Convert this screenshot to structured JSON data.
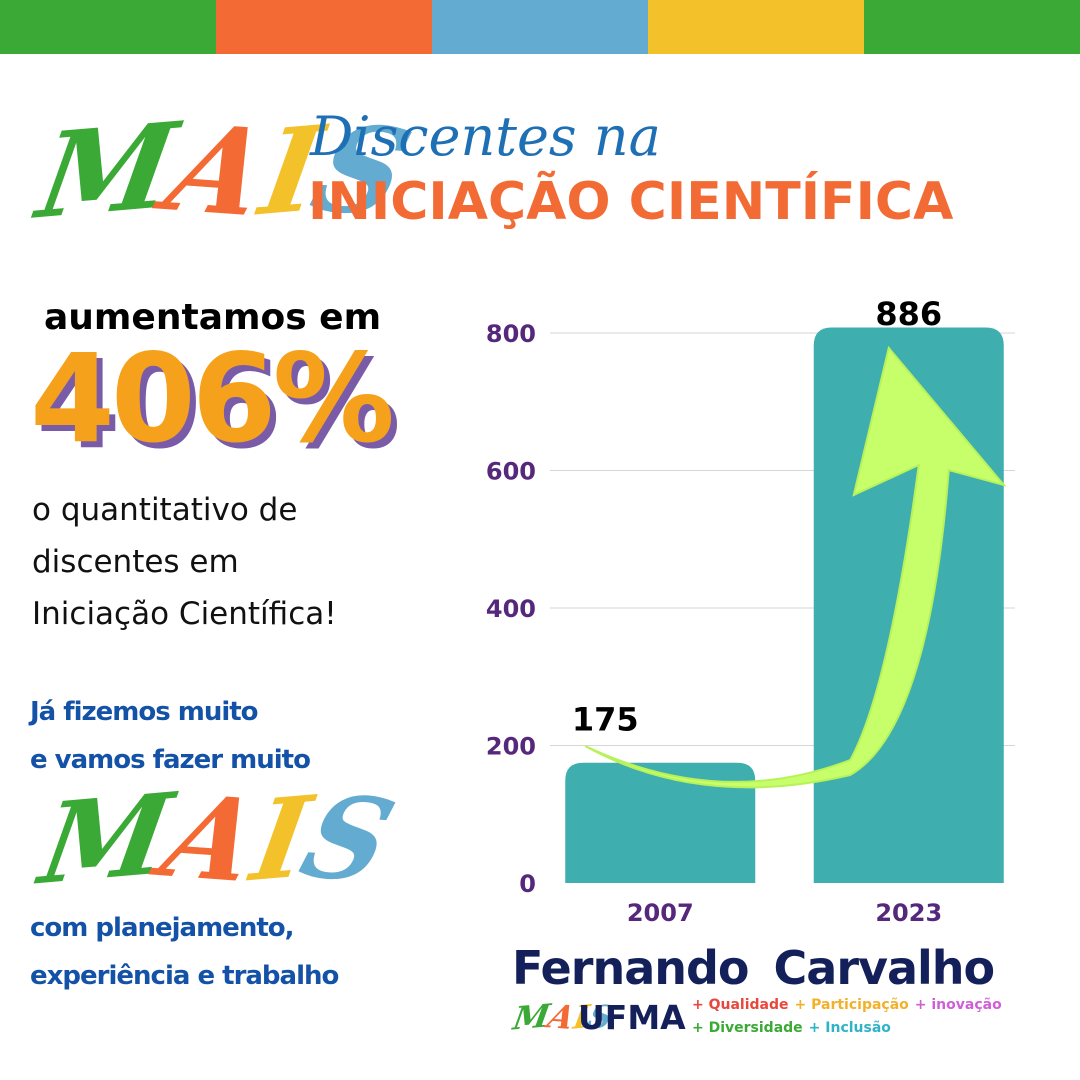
{
  "colors": {
    "top_stripes": [
      "#3aa935",
      "#f46a34",
      "#63abd0",
      "#f3c129",
      "#3aa935"
    ],
    "accent_orange": "#f36b34",
    "script_blue": "#1f6fb5",
    "bar": "#3faeaf",
    "axis_text": "#55287c",
    "arrow": "#c7ff6a",
    "blue_text": "#1452a8",
    "navy": "#14205a"
  },
  "header": {
    "brush_word": "MAIS",
    "script_line": "Discentes na",
    "main_line": "INICIAÇÃO CIENTÍFICA"
  },
  "left": {
    "lead": "aumentamos em",
    "percent": "406%",
    "desc_lines": [
      "o quantitativo de",
      "discentes em",
      "Iniciação Científica!"
    ],
    "blue_lines_1": [
      "Já fizemos muito",
      "e vamos fazer muito"
    ],
    "brush_word": "MAIS",
    "blue_lines_2": [
      "com planejamento,",
      "experiência e trabalho"
    ]
  },
  "chart_data": {
    "type": "bar",
    "categories": [
      "2007",
      "2023"
    ],
    "values": [
      175,
      886
    ],
    "value_labels": [
      "175",
      "886"
    ],
    "ylim": [
      0,
      800
    ],
    "yticks": [
      0,
      200,
      400,
      600,
      800
    ],
    "grid": true,
    "bar_color": "#3faeaf"
  },
  "signature": {
    "first_name": "Fernando",
    "last_name": "Carvalho",
    "mais": "MAIS",
    "ufma": "UFMA",
    "tags_line1": [
      {
        "text": "+ Qualidade",
        "color": "#e8473c"
      },
      {
        "text": "+ Participação",
        "color": "#f3b02a"
      },
      {
        "text": "+ inovação",
        "color": "#d05fd6"
      }
    ],
    "tags_line2": [
      {
        "text": "+ Diversidade",
        "color": "#3aa935"
      },
      {
        "text": "+ Inclusão",
        "color": "#2fb3c7"
      }
    ]
  }
}
